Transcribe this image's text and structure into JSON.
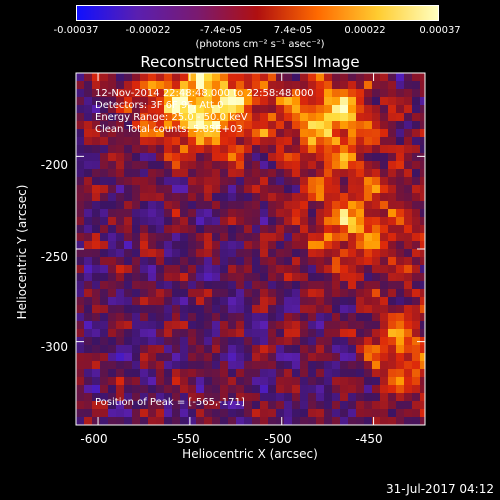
{
  "colorbar": {
    "ticks": [
      "-0.00037",
      "-0.00022",
      "-7.4e-05",
      "7.4e-05",
      "0.00022",
      "0.00037"
    ],
    "units": "(photons cm⁻² s⁻¹ asec⁻²)",
    "colors": [
      "#1010ff",
      "#5a1fb0",
      "#7a1a70",
      "#b01010",
      "#ff6a00",
      "#ffcc30",
      "#ffffc0"
    ]
  },
  "chart_data": {
    "type": "heatmap",
    "title": "Reconstructed RHESSI Image",
    "xlabel": "Heliocentric X (arcsec)",
    "ylabel": "Heliocentric Y (arcsec)",
    "xlim": [
      -612,
      -422
    ],
    "ylim": [
      -345,
      -155
    ],
    "xticks": [
      "-600",
      "-550",
      "-500",
      "-450"
    ],
    "yticks": [
      "-200",
      "-250",
      "-300"
    ],
    "colormap": "blue-purple-red-yellow-white",
    "peak_position": [
      -565,
      -171
    ]
  },
  "annotations": {
    "time_range": "12-Nov-2014 22:48:48.000 to 22:58:48.000",
    "detectors": "Detectors: 3F 6F 9F, Att 0",
    "energy": "Energy Range: 25.0 - 50.0 keV",
    "clean": "Clean     Total counts: 5.85E+03",
    "peak": "Position of Peak = [-565,-171]"
  },
  "footer": {
    "timestamp": "31-Jul-2017 04:12"
  }
}
